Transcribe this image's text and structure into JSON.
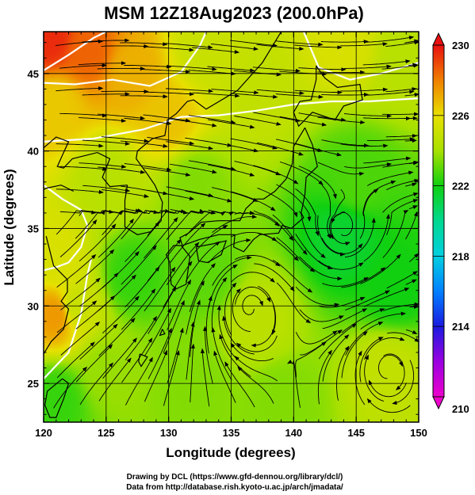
{
  "chart_data": {
    "type": "heatmap",
    "title": "MSM 12Z18Aug2023 (200.0hPa)",
    "xlabel": "Longitude (degrees)",
    "ylabel": "Latitude  (degrees)",
    "xlim": [
      120,
      150
    ],
    "ylim": [
      22.5,
      47.7
    ],
    "x_ticks": [
      120,
      125,
      130,
      135,
      140,
      145,
      150
    ],
    "y_ticks": [
      25,
      30,
      35,
      40,
      45
    ],
    "grid": true,
    "colorbar": {
      "min": 210,
      "max": 230,
      "ticks": [
        230,
        226,
        222,
        218,
        214,
        210
      ],
      "stops": [
        {
          "value": 210,
          "color": "#ee00cc"
        },
        {
          "value": 212,
          "color": "#9a00e0"
        },
        {
          "value": 214,
          "color": "#1a1ae0"
        },
        {
          "value": 216,
          "color": "#0080ff"
        },
        {
          "value": 218,
          "color": "#00d0e0"
        },
        {
          "value": 220,
          "color": "#00d890"
        },
        {
          "value": 222,
          "color": "#10d010"
        },
        {
          "value": 224,
          "color": "#a8e000"
        },
        {
          "value": 226,
          "color": "#e8e000"
        },
        {
          "value": 228,
          "color": "#f08000"
        },
        {
          "value": 230,
          "color": "#e81010"
        }
      ]
    },
    "field_anchors": [
      {
        "lon": 120.5,
        "lat": 47.3,
        "value": 229.5
      },
      {
        "lon": 123.5,
        "lat": 46.5,
        "value": 228.5
      },
      {
        "lon": 127,
        "lat": 45,
        "value": 227
      },
      {
        "lon": 121,
        "lat": 43,
        "value": 226.5
      },
      {
        "lon": 130,
        "lat": 42,
        "value": 226.6
      },
      {
        "lon": 133,
        "lat": 46.5,
        "value": 225
      },
      {
        "lon": 137,
        "lat": 44,
        "value": 224.8
      },
      {
        "lon": 144,
        "lat": 47,
        "value": 225.5
      },
      {
        "lon": 149,
        "lat": 46,
        "value": 224.5
      },
      {
        "lon": 125,
        "lat": 38,
        "value": 224.5
      },
      {
        "lon": 132,
        "lat": 38,
        "value": 223.5
      },
      {
        "lon": 145,
        "lat": 38,
        "value": 222.8
      },
      {
        "lon": 121,
        "lat": 33,
        "value": 225.5
      },
      {
        "lon": 121,
        "lat": 29.5,
        "value": 227.5
      },
      {
        "lon": 122.5,
        "lat": 30,
        "value": 225
      },
      {
        "lon": 127,
        "lat": 32,
        "value": 222.5
      },
      {
        "lon": 133,
        "lat": 32,
        "value": 223
      },
      {
        "lon": 137,
        "lat": 29,
        "value": 224.6
      },
      {
        "lon": 144,
        "lat": 34.5,
        "value": 221.5
      },
      {
        "lon": 148,
        "lat": 31,
        "value": 222
      },
      {
        "lon": 125,
        "lat": 26,
        "value": 223.8
      },
      {
        "lon": 132,
        "lat": 25,
        "value": 223.5
      },
      {
        "lon": 139,
        "lat": 24,
        "value": 223.5
      },
      {
        "lon": 147.5,
        "lat": 26,
        "value": 224.8
      },
      {
        "lon": 121,
        "lat": 24,
        "value": 222.5
      }
    ],
    "contours": [
      {
        "value": 228,
        "points": [
          [
            120,
            45.2
          ],
          [
            122,
            46.2
          ],
          [
            124,
            47.3
          ],
          [
            125,
            47.7
          ]
        ]
      },
      {
        "value": 226,
        "points": [
          [
            120,
            44.4
          ],
          [
            122.5,
            44.3
          ],
          [
            125.5,
            44.6
          ],
          [
            128.5,
            44.2
          ],
          [
            131,
            45.1
          ],
          [
            132.5,
            46.8
          ],
          [
            133,
            47.7
          ]
        ]
      },
      {
        "value": 226,
        "points": [
          [
            140.8,
            47.7
          ],
          [
            142,
            45.4
          ],
          [
            144.5,
            44.6
          ],
          [
            147,
            45
          ],
          [
            150,
            45.7
          ]
        ]
      },
      {
        "value": 226,
        "points": [
          [
            120,
            37.8
          ],
          [
            121.5,
            36.9
          ],
          [
            123,
            36.2
          ],
          [
            123.5,
            35.2
          ],
          [
            123,
            33.8
          ],
          [
            122,
            32.8
          ],
          [
            121,
            32.5
          ],
          [
            120,
            32.3
          ]
        ]
      },
      {
        "value": 224,
        "points": [
          [
            120,
            40.6
          ],
          [
            124,
            40.8
          ],
          [
            128,
            41.4
          ],
          [
            131,
            42.2
          ],
          [
            134,
            42.3
          ],
          [
            137,
            42.6
          ],
          [
            140,
            43
          ],
          [
            143,
            43.2
          ],
          [
            146,
            43.2
          ],
          [
            150,
            43.4
          ]
        ]
      },
      {
        "value": 224,
        "points": [
          [
            120,
            25.3
          ],
          [
            122,
            27
          ],
          [
            123,
            29.5
          ],
          [
            123.5,
            32
          ],
          [
            123.8,
            33
          ]
        ]
      }
    ],
    "vortices": [
      {
        "lon": 144,
        "lat": 35,
        "sense": "ccw"
      },
      {
        "lon": 136.5,
        "lat": 30,
        "sense": "cw"
      },
      {
        "lon": 147.5,
        "lat": 26,
        "sense": "cw"
      }
    ],
    "credits": [
      "Drawing by DCL (https://www.gfd-dennou.org/library/dcl/)",
      "Data from http://database.rish.kyoto-u.ac.jp/arch/jmadata/"
    ],
    "colors": {
      "contour": "#ffffff",
      "streamline": "#000000",
      "coast": "#000000",
      "grid": "#000000"
    }
  }
}
